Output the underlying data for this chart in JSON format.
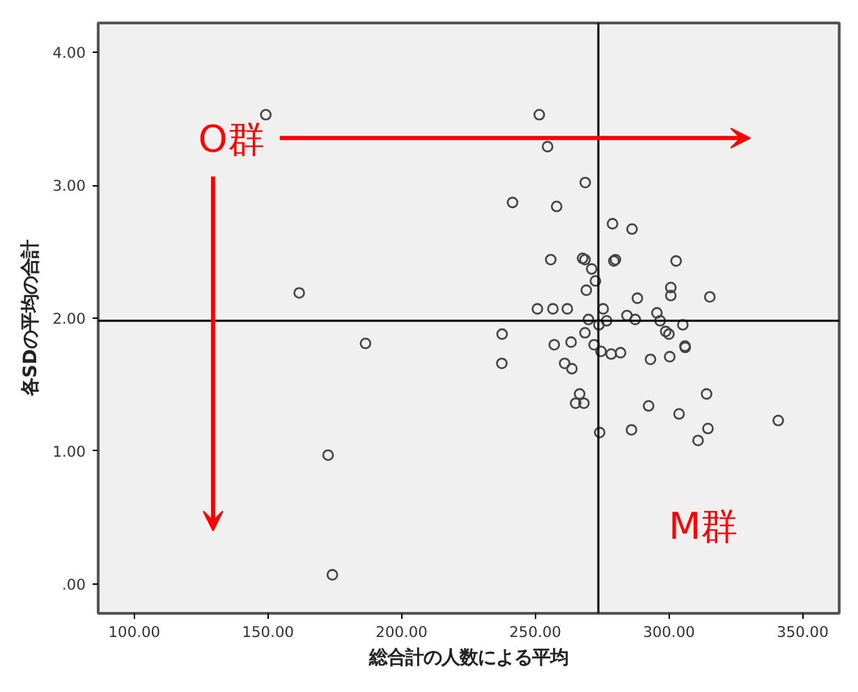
{
  "chart_data": {
    "type": "scatter",
    "xlabel": "総合計の人数による平均",
    "ylabel": "各SDの平均の合計",
    "marker": "circle",
    "xlim": [
      86.5,
      363.7
    ],
    "ylim": [
      -0.22,
      4.22
    ],
    "xticks": [
      {
        "value": 100,
        "label": "100.00"
      },
      {
        "value": 150,
        "label": "150.00"
      },
      {
        "value": 200,
        "label": "200.00"
      },
      {
        "value": 250,
        "label": "250.00"
      },
      {
        "value": 300,
        "label": "300.00"
      },
      {
        "value": 350,
        "label": "350.00"
      }
    ],
    "yticks": [
      {
        "value": 0,
        "label": ".00"
      },
      {
        "value": 1,
        "label": "1.00"
      },
      {
        "value": 2,
        "label": "2.00"
      },
      {
        "value": 3,
        "label": "3.00"
      },
      {
        "value": 4,
        "label": "4.00"
      }
    ],
    "ref_lines": [
      {
        "axis": "x",
        "value": 273.6,
        "color": "#000000"
      },
      {
        "axis": "y",
        "value": 1.98,
        "color": "#000000"
      }
    ],
    "annotations": [
      "O群",
      "M群"
    ],
    "series": [
      {
        "color": "#444444",
        "x": [
          149.2,
          161.7,
          186.5,
          172.5,
          174.1,
          251.5,
          254.6,
          268.7,
          241.5,
          258.0,
          278.9,
          286.2,
          255.8,
          267.7,
          268.6,
          279.4,
          280.0,
          302.7,
          271.1,
          272.5,
          269.1,
          300.7,
          300.7,
          288.2,
          315.3,
          250.8,
          256.6,
          262.0,
          275.4,
          269.9,
          276.7,
          284.3,
          287.4,
          295.5,
          296.7,
          298.8,
          300.0,
          305.2,
          237.6,
          268.6,
          273.8,
          257.1,
          263.4,
          306.0,
          272.0,
          274.6,
          278.4,
          281.9,
          293.1,
          300.3,
          306.1,
          237.5,
          261.0,
          263.7,
          266.6,
          265.1,
          268.2,
          274.1,
          286.0,
          292.4,
          303.8,
          314.1,
          314.6,
          310.9,
          340.9
        ],
        "values": [
          3.53,
          2.19,
          1.81,
          0.97,
          0.07,
          3.53,
          3.29,
          3.02,
          2.87,
          2.84,
          2.71,
          2.67,
          2.44,
          2.45,
          2.44,
          2.43,
          2.44,
          2.43,
          2.37,
          2.28,
          2.21,
          2.23,
          2.17,
          2.15,
          2.16,
          2.07,
          2.07,
          2.07,
          2.07,
          1.99,
          1.98,
          2.02,
          1.99,
          2.04,
          1.98,
          1.9,
          1.88,
          1.95,
          1.88,
          1.89,
          1.95,
          1.8,
          1.82,
          1.79,
          1.8,
          1.75,
          1.73,
          1.74,
          1.69,
          1.71,
          1.78,
          1.66,
          1.66,
          1.62,
          1.43,
          1.36,
          1.36,
          1.14,
          1.16,
          1.34,
          1.28,
          1.43,
          1.17,
          1.08,
          1.23
        ]
      }
    ]
  }
}
